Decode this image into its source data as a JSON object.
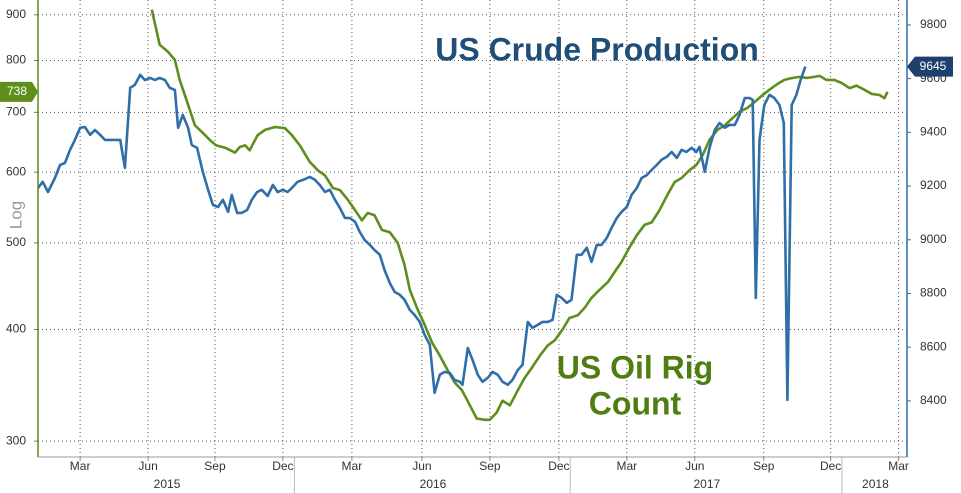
{
  "chart_data": {
    "type": "line",
    "log_scale": true,
    "grid": true,
    "y_axis_label": "Log",
    "annotations": [
      {
        "lines": [
          "US Crude Production"
        ],
        "color": "#1f4e79"
      },
      {
        "lines": [
          "US Oil Rig",
          "Count"
        ],
        "color": "#4f7d12"
      }
    ],
    "xlim": [
      0,
      165
    ],
    "xticks": [
      {
        "value": 8.0,
        "label": "Mar"
      },
      {
        "value": 20.9,
        "label": "Jun"
      },
      {
        "value": 33.6,
        "label": "Sep"
      },
      {
        "value": 46.5,
        "label": "Dec"
      },
      {
        "value": 59.6,
        "label": "Mar"
      },
      {
        "value": 72.9,
        "label": "Jun"
      },
      {
        "value": 85.8,
        "label": "Sep"
      },
      {
        "value": 98.9,
        "label": "Dec"
      },
      {
        "value": 111.8,
        "label": "Mar"
      },
      {
        "value": 124.7,
        "label": "Jun"
      },
      {
        "value": 137.8,
        "label": "Sep"
      },
      {
        "value": 150.5,
        "label": "Dec"
      },
      {
        "value": 163.4,
        "label": "Mar"
      }
    ],
    "year_ticks": [
      {
        "value": 24.5,
        "label": "2015"
      },
      {
        "value": 75.0,
        "label": "2016"
      },
      {
        "value": 127.0,
        "label": "2017"
      },
      {
        "value": 159.0,
        "label": "2018"
      }
    ],
    "ylim": [
      288,
      935
    ],
    "yticks": [
      300,
      400,
      500,
      600,
      700,
      800,
      900
    ],
    "y2lim": [
      8191,
      9893
    ],
    "y2ticks": [
      8400,
      8600,
      8800,
      9000,
      9200,
      9400,
      9600,
      9800
    ],
    "series": [
      {
        "color": "#5e8f1c",
        "axis": "y",
        "tag_color": "#5e8f1c",
        "x": [
          21.6,
          23.1,
          24.7,
          26.0,
          26.9,
          28.5,
          29.8,
          31.3,
          32.6,
          33.8,
          35.5,
          37.4,
          38.3,
          39.3,
          40.2,
          41.7,
          43.1,
          45.0,
          46.9,
          48.2,
          49.7,
          51.6,
          53.1,
          54.5,
          56.0,
          57.3,
          58.8,
          60.2,
          61.5,
          62.6,
          63.9,
          65.3,
          66.8,
          68.3,
          69.6,
          70.6,
          72.1,
          73.4,
          74.8,
          76.3,
          77.8,
          79.1,
          80.5,
          82.0,
          83.3,
          84.8,
          85.8,
          87.1,
          88.2,
          89.6,
          91.1,
          92.4,
          93.7,
          95.3,
          96.8,
          98.1,
          99.6,
          100.9,
          102.5,
          103.8,
          105.1,
          106.6,
          108.2,
          109.5,
          110.8,
          112.3,
          113.7,
          115.2,
          116.5,
          118.0,
          119.5,
          120.9,
          122.2,
          123.7,
          125.0,
          126.2,
          127.5,
          129.0,
          130.4,
          131.9,
          133.2,
          134.7,
          136.1,
          137.6,
          138.9,
          140.4,
          141.7,
          143.3,
          144.6,
          146.1,
          147.4,
          148.4,
          149.7,
          151.2,
          152.6,
          154.1,
          155.4,
          156.9,
          158.3,
          159.8,
          160.7,
          161.3
        ],
        "values": [
          912,
          833,
          818,
          801,
          761,
          714,
          677,
          664,
          652,
          643,
          639,
          631,
          640,
          643,
          635,
          660,
          669,
          674,
          672,
          660,
          643,
          616,
          603,
          595,
          576,
          573,
          559,
          544,
          530,
          540,
          537,
          517,
          514,
          500,
          472,
          443,
          421,
          405,
          387,
          374,
          360,
          349,
          342,
          329,
          318,
          317,
          317,
          323,
          333,
          329,
          342,
          353,
          362,
          374,
          384,
          389,
          400,
          412,
          415,
          423,
          434,
          443,
          452,
          464,
          476,
          494,
          510,
          524,
          527,
          544,
          566,
          585,
          591,
          603,
          611,
          627,
          652,
          669,
          677,
          690,
          701,
          708,
          719,
          732,
          742,
          753,
          761,
          765,
          767,
          765,
          767,
          769,
          761,
          761,
          755,
          745,
          750,
          742,
          734,
          732,
          726,
          738
        ]
      },
      {
        "color": "#2f6ea8",
        "axis": "y2",
        "tag_color": "#1f3f6e",
        "x": [
          0,
          0.9,
          1.9,
          3.2,
          4.2,
          5.1,
          6.1,
          7.0,
          8.0,
          8.9,
          9.9,
          10.8,
          11.8,
          12.7,
          13.7,
          14.6,
          15.6,
          16.5,
          17.5,
          18.4,
          19.4,
          20.3,
          21.3,
          22.2,
          23.1,
          24.1,
          25.0,
          26.0,
          26.6,
          27.5,
          28.5,
          29.2,
          30.2,
          31.3,
          32.3,
          33.2,
          34.2,
          35.1,
          36.1,
          36.8,
          37.8,
          38.7,
          39.7,
          40.6,
          41.6,
          42.5,
          43.6,
          44.6,
          45.5,
          46.5,
          47.4,
          48.4,
          49.3,
          50.3,
          51.6,
          52.6,
          53.5,
          54.5,
          55.4,
          56.4,
          57.3,
          58.3,
          59.2,
          60.2,
          61.1,
          62.0,
          63.0,
          63.9,
          64.9,
          65.8,
          66.8,
          67.7,
          68.7,
          69.6,
          70.6,
          71.5,
          72.5,
          73.4,
          74.4,
          75.3,
          76.3,
          77.2,
          78.2,
          79.1,
          80.1,
          80.6,
          81.6,
          82.5,
          83.5,
          84.4,
          85.4,
          86.3,
          87.3,
          88.2,
          89.2,
          90.1,
          91.1,
          92.0,
          93.0,
          93.9,
          94.9,
          95.8,
          96.8,
          97.7,
          98.5,
          99.4,
          100.4,
          101.3,
          102.3,
          103.2,
          104.2,
          105.1,
          106.1,
          107.0,
          108.0,
          108.9,
          109.9,
          110.8,
          111.8,
          112.7,
          113.7,
          114.6,
          115.6,
          116.5,
          117.5,
          118.4,
          119.4,
          120.3,
          121.3,
          122.2,
          123.1,
          124.1,
          125.0,
          125.6,
          126.6,
          127.5,
          128.5,
          129.4,
          130.4,
          131.3,
          132.3,
          133.2,
          134.2,
          135.1,
          135.7,
          136.3,
          137.0,
          137.9,
          138.9,
          139.8,
          140.8,
          141.6,
          142.3,
          143.1,
          144.0,
          144.8,
          145.7
        ],
        "values": [
          9193,
          9216,
          9178,
          9230,
          9279,
          9286,
          9335,
          9372,
          9417,
          9420,
          9391,
          9409,
          9391,
          9372,
          9372,
          9372,
          9372,
          9268,
          9566,
          9577,
          9614,
          9595,
          9603,
          9595,
          9603,
          9595,
          9566,
          9558,
          9417,
          9465,
          9417,
          9353,
          9342,
          9253,
          9186,
          9130,
          9122,
          9149,
          9104,
          9167,
          9100,
          9100,
          9111,
          9149,
          9178,
          9186,
          9163,
          9204,
          9178,
          9186,
          9178,
          9197,
          9216,
          9223,
          9234,
          9223,
          9204,
          9178,
          9186,
          9149,
          9119,
          9081,
          9081,
          9067,
          9029,
          9000,
          8981,
          8962,
          8944,
          8888,
          8839,
          8806,
          8795,
          8776,
          8739,
          8720,
          8694,
          8646,
          8609,
          8430,
          8497,
          8508,
          8504,
          8478,
          8471,
          8460,
          8597,
          8553,
          8497,
          8471,
          8486,
          8508,
          8497,
          8471,
          8460,
          8478,
          8515,
          8534,
          8694,
          8672,
          8683,
          8694,
          8694,
          8702,
          8795,
          8784,
          8765,
          8776,
          8944,
          8944,
          8970,
          8918,
          8981,
          8981,
          9007,
          9044,
          9081,
          9104,
          9122,
          9167,
          9193,
          9230,
          9241,
          9260,
          9279,
          9298,
          9309,
          9327,
          9305,
          9335,
          9327,
          9342,
          9327,
          9346,
          9253,
          9342,
          9409,
          9435,
          9417,
          9428,
          9428,
          9465,
          9528,
          9528,
          9521,
          8784,
          9372,
          9502,
          9540,
          9528,
          9502,
          9435,
          8404,
          9502,
          9540,
          9595,
          9645
        ]
      }
    ]
  }
}
